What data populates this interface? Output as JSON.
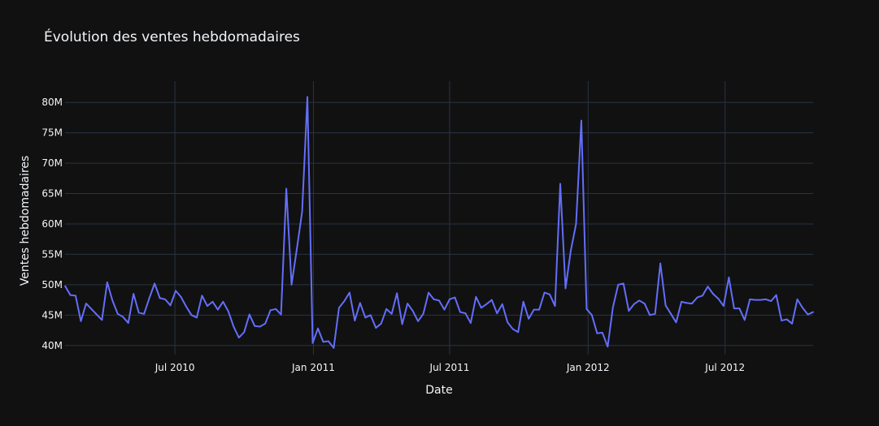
{
  "chart_data": {
    "type": "line",
    "title": "Évolution des ventes hebdomadaires",
    "xlabel": "Date",
    "ylabel": "Ventes hebdomadaires",
    "x_start": "2010-02-05",
    "x_end": "2012-10-26",
    "ylim": [
      38.5,
      83.5
    ],
    "y_unit_suffix": "M",
    "grid": true,
    "line_color": "#636efa",
    "background_color": "#111111",
    "grid_color": "#283442",
    "y_ticks": [
      {
        "value": 40,
        "label": "40M"
      },
      {
        "value": 45,
        "label": "45M"
      },
      {
        "value": 50,
        "label": "50M"
      },
      {
        "value": 55,
        "label": "55M"
      },
      {
        "value": 60,
        "label": "60M"
      },
      {
        "value": 65,
        "label": "65M"
      },
      {
        "value": 70,
        "label": "70M"
      },
      {
        "value": 75,
        "label": "75M"
      },
      {
        "value": 80,
        "label": "80M"
      }
    ],
    "x_ticks": [
      {
        "date": "2010-07-01",
        "label": "Jul 2010"
      },
      {
        "date": "2011-01-01",
        "label": "Jan 2011"
      },
      {
        "date": "2011-07-01",
        "label": "Jul 2011"
      },
      {
        "date": "2012-01-01",
        "label": "Jan 2012"
      },
      {
        "date": "2012-07-01",
        "label": "Jul 2012"
      }
    ],
    "series": [
      {
        "values": [
          49.8,
          48.3,
          48.2,
          44.0,
          46.9,
          46.0,
          45.1,
          44.2,
          50.4,
          47.4,
          45.2,
          44.7,
          43.7,
          48.5,
          45.4,
          45.2,
          47.8,
          50.2,
          47.8,
          47.6,
          46.6,
          49.0,
          48.0,
          46.4,
          45.0,
          44.6,
          48.2,
          46.5,
          47.2,
          45.9,
          47.2,
          45.6,
          43.1,
          41.3,
          42.2,
          45.1,
          43.2,
          43.1,
          43.6,
          45.8,
          46.0,
          45.1,
          65.8,
          50.0,
          55.9,
          62.0,
          80.9,
          40.4,
          42.8,
          40.6,
          40.7,
          39.6,
          46.2,
          47.3,
          48.7,
          44.1,
          47.0,
          44.6,
          45.0,
          42.9,
          43.6,
          46.0,
          45.2,
          48.6,
          43.5,
          46.9,
          45.7,
          44.0,
          45.2,
          48.7,
          47.6,
          47.4,
          45.9,
          47.6,
          47.9,
          45.5,
          45.3,
          43.7,
          48.0,
          46.2,
          46.8,
          47.5,
          45.3,
          46.8,
          43.8,
          42.7,
          42.2,
          47.2,
          44.4,
          45.9,
          45.9,
          48.7,
          48.4,
          46.5,
          66.6,
          49.4,
          55.6,
          60.0,
          77.0,
          46.0,
          45.0,
          42.0,
          42.1,
          39.8,
          46.3,
          50.0,
          50.2,
          45.7,
          46.8,
          47.4,
          46.9,
          45.0,
          45.2,
          53.5,
          46.6,
          45.2,
          43.8,
          47.2,
          47.0,
          46.9,
          47.9,
          48.2,
          49.7,
          48.5,
          47.7,
          46.5,
          51.2,
          46.1,
          46.1,
          44.2,
          47.6,
          47.5,
          47.5,
          47.6,
          47.3,
          48.3,
          44.1,
          44.3,
          43.6,
          47.6,
          46.2,
          45.1,
          45.5
        ]
      }
    ]
  }
}
